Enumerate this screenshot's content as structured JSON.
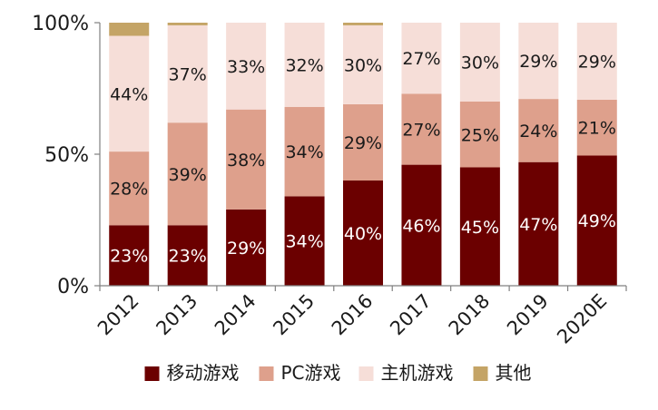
{
  "chart_data": {
    "type": "bar",
    "stacked": true,
    "percent": true,
    "categories": [
      "2012",
      "2013",
      "2014",
      "2015",
      "2016",
      "2017",
      "2018",
      "2019",
      "2020E"
    ],
    "series": [
      {
        "name": "移动游戏",
        "color": "#6b0000",
        "values": [
          23,
          23,
          29,
          34,
          40,
          46,
          45,
          47,
          49
        ],
        "labels": [
          "23%",
          "23%",
          "29%",
          "34%",
          "40%",
          "46%",
          "45%",
          "47%",
          "49%"
        ],
        "label_color": "#ffffff"
      },
      {
        "name": "PC游戏",
        "color": "#dea08c",
        "values": [
          28,
          39,
          38,
          34,
          29,
          27,
          25,
          24,
          21
        ],
        "labels": [
          "28%",
          "39%",
          "38%",
          "34%",
          "29%",
          "27%",
          "25%",
          "24%",
          "21%"
        ],
        "label_color": "#1a1a1a"
      },
      {
        "name": "主机游戏",
        "color": "#f6ded8",
        "values": [
          44,
          37,
          33,
          32,
          30,
          27,
          30,
          29,
          29
        ],
        "labels": [
          "44%",
          "37%",
          "33%",
          "32%",
          "30%",
          "27%",
          "30%",
          "29%",
          "29%"
        ],
        "label_color": "#1a1a1a"
      },
      {
        "name": "其他",
        "color": "#c4a466",
        "values": [
          5,
          1,
          0,
          0,
          1,
          0,
          0,
          0,
          0
        ],
        "labels": [
          "",
          "",
          "",
          "",
          "",
          "",
          "",
          "",
          ""
        ],
        "label_color": "#1a1a1a"
      }
    ],
    "y_ticks": [
      "0%",
      "50%",
      "100%"
    ],
    "y_tick_values": [
      0,
      50,
      100
    ],
    "ylim": [
      0,
      100
    ],
    "grid": false,
    "legend_position": "bottom",
    "title": "",
    "xlabel": "",
    "ylabel": ""
  }
}
